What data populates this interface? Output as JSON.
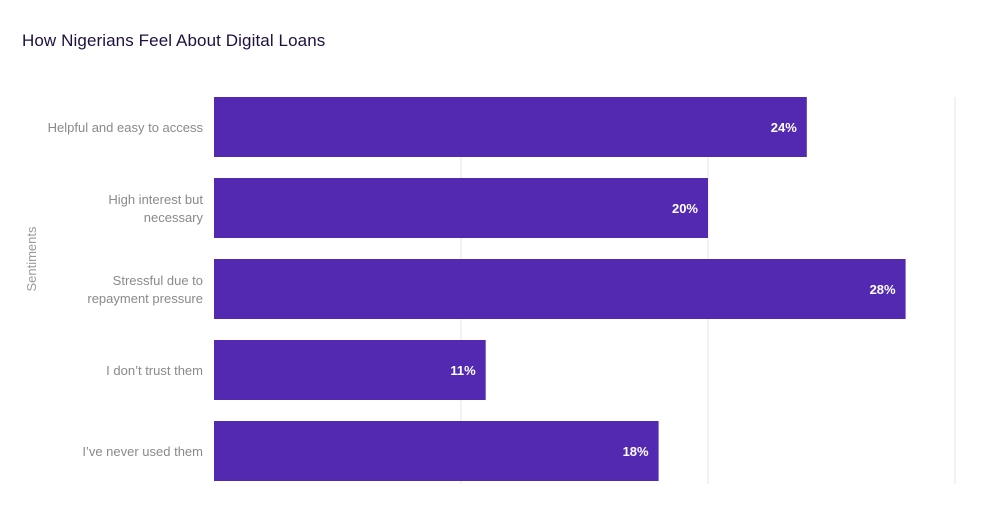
{
  "chart_data": {
    "type": "bar",
    "orientation": "horizontal",
    "title": "How Nigerians Feel About Digital Loans",
    "ylabel": "Sentiments",
    "xlabel": "",
    "categories": [
      [
        "Helpful and easy to access"
      ],
      [
        "High interest but",
        "necessary"
      ],
      [
        "Stressful due to",
        "repayment pressure"
      ],
      [
        "I don’t trust them"
      ],
      [
        "I’ve never used them"
      ]
    ],
    "values": [
      24,
      20,
      28,
      11,
      18
    ],
    "value_labels": [
      "24%",
      "20%",
      "28%",
      "11%",
      "18%"
    ],
    "xlim": [
      0,
      30
    ],
    "grid": true,
    "bar_color": "#5229b0",
    "grid_color": "#e4e4e4"
  }
}
